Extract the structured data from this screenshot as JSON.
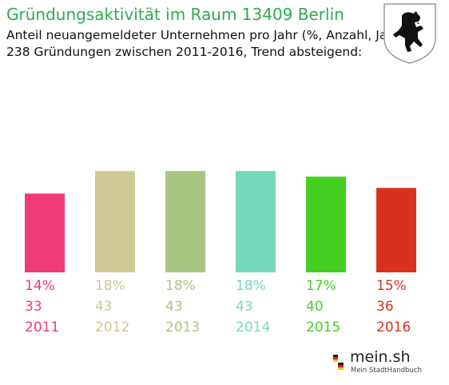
{
  "header": {
    "title": "Gründungsaktivität im Raum 13409 Berlin",
    "subtitle_line1": "Anteil neuangemeldeter Unternehmen pro Jahr (%, Anzahl, Jahr)",
    "subtitle_line2": "238 Gründungen zwischen 2011-2016, Trend absteigend:"
  },
  "crest": {
    "icon": "berlin-bear-crest-icon"
  },
  "logo": {
    "name": "mein.sh",
    "tagline": "Mein StadtHandbuch",
    "icon": "germany-pin-icon"
  },
  "chart_data": {
    "type": "bar",
    "categories": [
      "2011",
      "2012",
      "2013",
      "2014",
      "2015",
      "2016"
    ],
    "values": [
      14,
      18,
      18,
      18,
      17,
      15
    ],
    "value_labels": [
      "14%",
      "18%",
      "18%",
      "18%",
      "17%",
      "15%"
    ],
    "counts": [
      "33",
      "43",
      "43",
      "43",
      "40",
      "36"
    ],
    "colors": [
      "#f03a78",
      "#cec996",
      "#a9c582",
      "#76d9bc",
      "#45cf23",
      "#d9321c"
    ],
    "total": "238",
    "unit": "%",
    "grid": false,
    "legend": "none"
  }
}
